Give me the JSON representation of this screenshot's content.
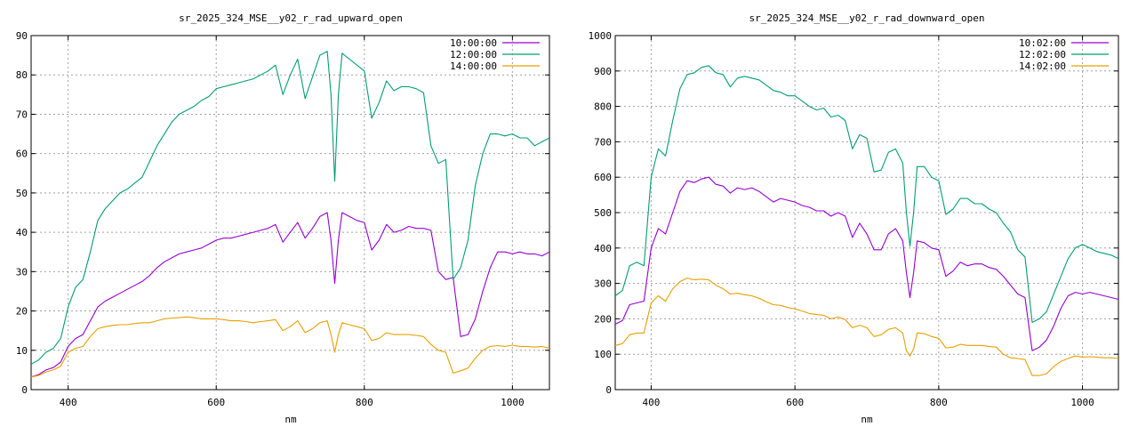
{
  "chart_data": [
    {
      "type": "line",
      "title": "sr_2025_324_MSE__y02_r_rad_upward_open",
      "xlabel": "nm",
      "ylabel": "",
      "xlim": [
        350,
        1050
      ],
      "ylim": [
        0,
        90
      ],
      "xticks": [
        400,
        600,
        800,
        1000
      ],
      "yticks": [
        0,
        10,
        20,
        30,
        40,
        50,
        60,
        70,
        80,
        90
      ],
      "grid": true,
      "legend_position": "top-right",
      "x": [
        350,
        360,
        370,
        380,
        390,
        400,
        410,
        420,
        430,
        440,
        450,
        460,
        470,
        480,
        490,
        500,
        510,
        520,
        530,
        540,
        550,
        560,
        570,
        580,
        590,
        600,
        610,
        620,
        630,
        640,
        650,
        660,
        670,
        680,
        690,
        700,
        710,
        720,
        730,
        740,
        750,
        755,
        760,
        765,
        770,
        780,
        790,
        800,
        810,
        820,
        830,
        840,
        850,
        860,
        870,
        880,
        890,
        900,
        910,
        920,
        930,
        940,
        950,
        960,
        970,
        980,
        990,
        1000,
        1010,
        1020,
        1030,
        1040,
        1050
      ],
      "series": [
        {
          "name": "10:00:00",
          "color": "#9400d3",
          "values": [
            3.2,
            3.8,
            5.0,
            5.6,
            7.0,
            11.0,
            13.0,
            14.0,
            17.5,
            21.0,
            22.5,
            23.5,
            24.5,
            25.5,
            26.5,
            27.5,
            29.0,
            31.0,
            32.5,
            33.5,
            34.5,
            35.0,
            35.5,
            36.0,
            37.0,
            38.0,
            38.5,
            38.5,
            39.0,
            39.5,
            40.0,
            40.5,
            41.0,
            42.0,
            37.5,
            40.0,
            42.5,
            38.5,
            41.0,
            44.0,
            45.0,
            38.0,
            27.0,
            38.0,
            45.0,
            44.0,
            43.0,
            42.5,
            35.5,
            38.0,
            42.0,
            40.0,
            40.5,
            41.5,
            41.0,
            41.0,
            40.5,
            30.0,
            28.0,
            28.5,
            13.5,
            14.0,
            18.0,
            25.0,
            31.0,
            35.0,
            35.0,
            34.5,
            35.0,
            34.5,
            34.5,
            34.0,
            35.0
          ]
        },
        {
          "name": "12:00:00",
          "color": "#009e73",
          "values": [
            6.5,
            7.5,
            9.5,
            10.5,
            13.0,
            21.0,
            26.0,
            28.0,
            35.0,
            43.0,
            46.0,
            48.0,
            50.0,
            51.0,
            52.5,
            54.0,
            58.0,
            62.0,
            65.0,
            68.0,
            70.0,
            71.0,
            72.0,
            73.5,
            74.5,
            76.5,
            77.0,
            77.5,
            78.0,
            78.5,
            79.0,
            80.0,
            81.0,
            82.5,
            75.0,
            80.0,
            84.0,
            74.0,
            79.5,
            85.0,
            86.0,
            75.0,
            53.0,
            75.0,
            85.5,
            84.0,
            82.5,
            81.0,
            69.0,
            73.0,
            78.5,
            76.0,
            77.0,
            77.0,
            76.5,
            75.5,
            62.0,
            57.5,
            58.5,
            28.0,
            31.0,
            38.0,
            52.0,
            60.0,
            65.0,
            65.0,
            64.5,
            65.0,
            64.0,
            64.0,
            62.0,
            63.0,
            64.0
          ]
        },
        {
          "name": "14:00:00",
          "color": "#e69f00",
          "values": [
            3.2,
            3.6,
            4.5,
            5.0,
            6.0,
            9.5,
            10.5,
            11.0,
            13.5,
            15.5,
            16.0,
            16.3,
            16.5,
            16.5,
            16.8,
            17.0,
            17.0,
            17.5,
            18.0,
            18.2,
            18.3,
            18.5,
            18.3,
            18.0,
            18.0,
            18.0,
            17.8,
            17.5,
            17.5,
            17.3,
            17.0,
            17.3,
            17.5,
            17.8,
            15.0,
            16.0,
            17.5,
            14.5,
            15.5,
            17.0,
            17.5,
            14.0,
            9.5,
            14.0,
            17.0,
            16.5,
            16.0,
            15.5,
            12.5,
            13.0,
            14.5,
            14.0,
            14.0,
            14.0,
            13.8,
            13.5,
            11.5,
            10.0,
            9.5,
            4.2,
            4.8,
            5.5,
            8.0,
            10.0,
            11.0,
            11.2,
            11.0,
            11.3,
            11.0,
            11.0,
            10.8,
            11.0,
            10.5
          ]
        }
      ]
    },
    {
      "type": "line",
      "title": "sr_2025_324_MSE__y02_r_rad_downward_open",
      "xlabel": "nm",
      "ylabel": "",
      "xlim": [
        350,
        1050
      ],
      "ylim": [
        0,
        1000
      ],
      "xticks": [
        400,
        600,
        800,
        1000
      ],
      "yticks": [
        0,
        100,
        200,
        300,
        400,
        500,
        600,
        700,
        800,
        900,
        1000
      ],
      "grid": true,
      "legend_position": "top-right",
      "x": [
        350,
        360,
        370,
        380,
        390,
        400,
        410,
        420,
        430,
        440,
        450,
        460,
        470,
        480,
        490,
        500,
        510,
        520,
        530,
        540,
        550,
        560,
        570,
        580,
        590,
        600,
        610,
        620,
        630,
        640,
        650,
        660,
        670,
        680,
        690,
        700,
        710,
        720,
        730,
        740,
        750,
        755,
        760,
        765,
        770,
        780,
        790,
        800,
        810,
        820,
        830,
        840,
        850,
        860,
        870,
        880,
        890,
        900,
        910,
        920,
        930,
        940,
        950,
        960,
        970,
        980,
        990,
        1000,
        1010,
        1020,
        1030,
        1040,
        1050
      ],
      "series": [
        {
          "name": "10:02:00",
          "color": "#9400d3",
          "values": [
            185,
            195,
            240,
            245,
            250,
            400,
            455,
            440,
            500,
            560,
            590,
            585,
            595,
            600,
            580,
            575,
            555,
            570,
            565,
            570,
            560,
            545,
            530,
            540,
            535,
            530,
            520,
            515,
            505,
            505,
            490,
            500,
            490,
            430,
            470,
            440,
            395,
            395,
            440,
            455,
            420,
            330,
            260,
            330,
            420,
            415,
            400,
            395,
            320,
            335,
            360,
            350,
            355,
            355,
            345,
            340,
            320,
            295,
            270,
            260,
            110,
            120,
            140,
            180,
            230,
            265,
            275,
            270,
            275,
            270,
            265,
            260,
            255
          ]
        },
        {
          "name": "12:02:00",
          "color": "#009e73",
          "values": [
            265,
            280,
            350,
            360,
            350,
            600,
            680,
            660,
            760,
            850,
            890,
            895,
            910,
            915,
            895,
            890,
            855,
            880,
            885,
            880,
            875,
            860,
            845,
            840,
            830,
            830,
            815,
            800,
            790,
            795,
            770,
            775,
            760,
            680,
            720,
            710,
            615,
            620,
            670,
            680,
            640,
            500,
            405,
            500,
            630,
            630,
            600,
            590,
            495,
            510,
            540,
            540,
            525,
            525,
            510,
            500,
            470,
            445,
            395,
            375,
            190,
            200,
            220,
            270,
            320,
            370,
            400,
            410,
            400,
            390,
            385,
            380,
            370
          ]
        },
        {
          "name": "14:02:00",
          "color": "#e69f00",
          "values": [
            125,
            130,
            155,
            160,
            160,
            245,
            265,
            250,
            285,
            305,
            315,
            310,
            312,
            310,
            295,
            285,
            270,
            272,
            268,
            265,
            258,
            248,
            240,
            238,
            232,
            228,
            222,
            215,
            212,
            210,
            200,
            205,
            198,
            175,
            182,
            175,
            150,
            155,
            170,
            175,
            160,
            110,
            95,
            115,
            160,
            158,
            150,
            145,
            118,
            120,
            128,
            125,
            125,
            125,
            122,
            120,
            100,
            90,
            88,
            85,
            40,
            40,
            45,
            65,
            80,
            88,
            95,
            92,
            93,
            92,
            90,
            90,
            88
          ]
        }
      ]
    }
  ]
}
